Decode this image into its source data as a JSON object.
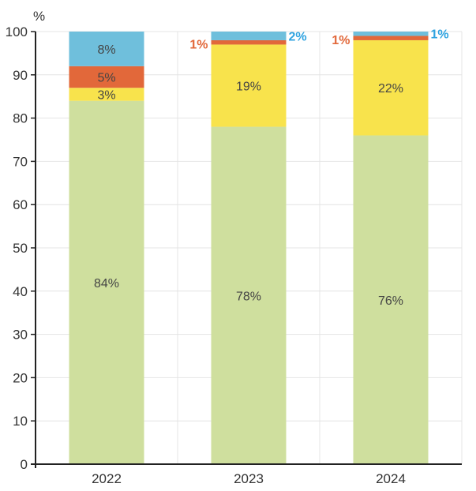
{
  "chart_data": {
    "type": "bar",
    "stacked": true,
    "title": "",
    "xlabel": "",
    "ylabel": "%",
    "ylim": [
      0,
      100
    ],
    "yticks": [
      0,
      10,
      20,
      30,
      40,
      50,
      60,
      70,
      80,
      90,
      100
    ],
    "grid": true,
    "categories": [
      "2022",
      "2023",
      "2024"
    ],
    "series": [
      {
        "values": [
          84,
          78,
          76
        ],
        "labels": [
          "84%",
          "78%",
          "76%"
        ],
        "color": "#cfdf9e"
      },
      {
        "values": [
          3,
          19,
          22
        ],
        "labels": [
          "3%",
          "19%",
          "22%"
        ],
        "color": "#f8e34c"
      },
      {
        "values": [
          5,
          1,
          1
        ],
        "labels": [
          "5%",
          "1%",
          "1%"
        ],
        "color": "#e2683a",
        "outside_label_color": "#e2683a"
      },
      {
        "values": [
          8,
          2,
          1
        ],
        "labels": [
          "8%",
          "2%",
          "1%"
        ],
        "color": "#6fbfdc",
        "outside_label_color": "#2fa3e0"
      }
    ]
  }
}
